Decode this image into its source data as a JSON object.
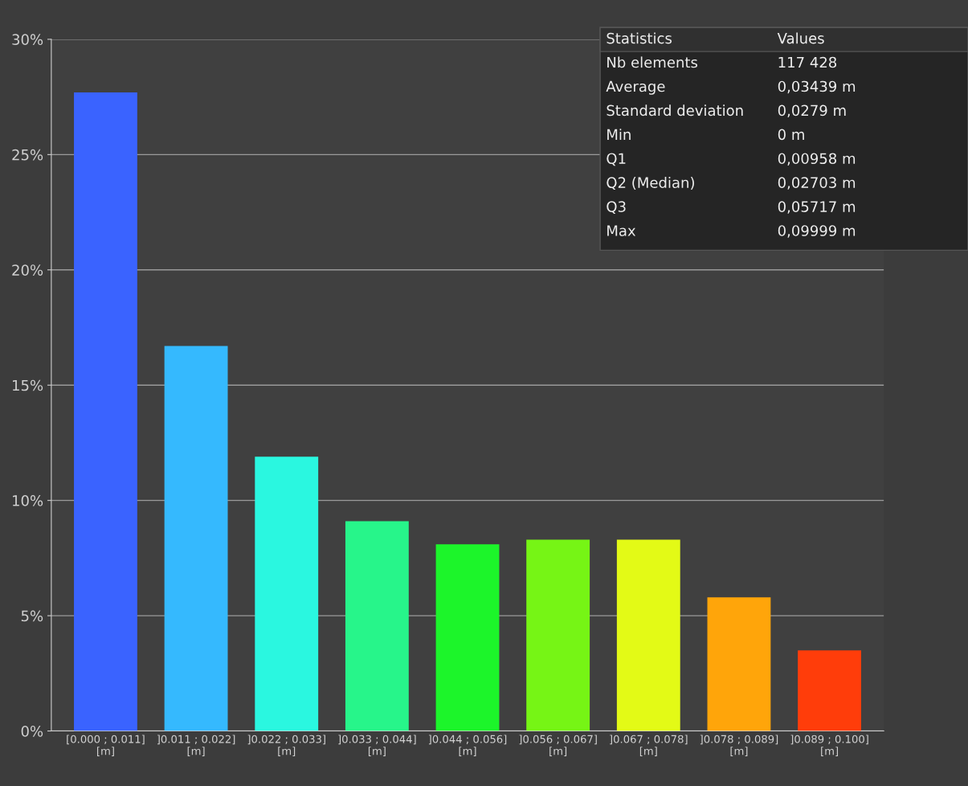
{
  "chart_data": {
    "type": "bar",
    "categories": [
      "[0.000 ; 0.011]\n[m]",
      "]0.011 ; 0.022]\n[m]",
      "]0.022 ; 0.033]\n[m]",
      "]0.033 ; 0.044]\n[m]",
      "]0.044 ; 0.056]\n[m]",
      "]0.056 ; 0.067]\n[m]",
      "]0.067 ; 0.078]\n[m]",
      "]0.078 ; 0.089]\n[m]",
      "]0.089 ; 0.100]\n[m]"
    ],
    "values": [
      27.7,
      16.7,
      11.9,
      9.1,
      8.1,
      8.3,
      8.3,
      5.8,
      3.5
    ],
    "colors": [
      "#3a63ff",
      "#35b9fe",
      "#2af7e0",
      "#27f58a",
      "#1cf52a",
      "#76f515",
      "#e3fa16",
      "#ffa50a",
      "#ff3d0a"
    ],
    "ylim": [
      0,
      30
    ],
    "yticks": [
      {
        "value": 0,
        "label": "0%"
      },
      {
        "value": 5,
        "label": "5%"
      },
      {
        "value": 10,
        "label": "10%"
      },
      {
        "value": 15,
        "label": "15%"
      },
      {
        "value": 20,
        "label": "20%"
      },
      {
        "value": 25,
        "label": "25%"
      },
      {
        "value": 30,
        "label": "30%"
      }
    ],
    "grid": "y",
    "annotations": [
      "Statistics",
      "Values",
      "Nb elements",
      "117 428",
      "Average",
      "0,03439 m",
      "Standard deviation",
      "0,0279 m",
      "Min",
      "0 m",
      "Q1",
      "0,00958 m",
      "Q2 (Median)",
      "0,02703 m",
      "Q3",
      "0,05717 m",
      "Max",
      "0,09999 m"
    ]
  }
}
